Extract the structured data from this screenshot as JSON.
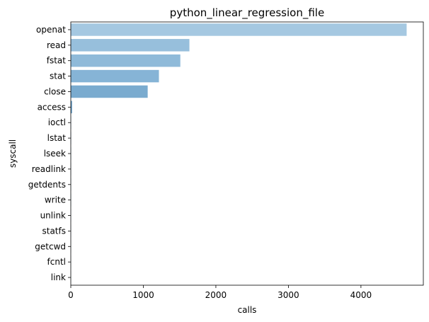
{
  "chart_data": {
    "type": "bar",
    "orientation": "horizontal",
    "title": "python_linear_regression_file",
    "xlabel": "calls",
    "ylabel": "syscall",
    "categories": [
      "openat",
      "read",
      "fstat",
      "stat",
      "close",
      "access",
      "ioctl",
      "lstat",
      "lseek",
      "readlink",
      "getdents",
      "write",
      "unlink",
      "statfs",
      "getcwd",
      "fcntl",
      "link"
    ],
    "values": [
      4630,
      1635,
      1510,
      1215,
      1060,
      18,
      4,
      3,
      3,
      2,
      2,
      2,
      1,
      1,
      1,
      1,
      1
    ],
    "xlim": [
      0,
      4860
    ],
    "xticks": [
      0,
      1000,
      2000,
      3000,
      4000
    ],
    "grid": false,
    "colors": [
      "#a5c8e1",
      "#97bfdc",
      "#8fbad9",
      "#86b4d6",
      "#7aabcf",
      "#6ea3cb",
      "#649dc7",
      "#5a96c2",
      "#5190bf",
      "#478aba",
      "#3e84b6",
      "#357db1",
      "#2e77ac",
      "#2a71a6",
      "#266ba0",
      "#22649a",
      "#1f5e93"
    ]
  }
}
